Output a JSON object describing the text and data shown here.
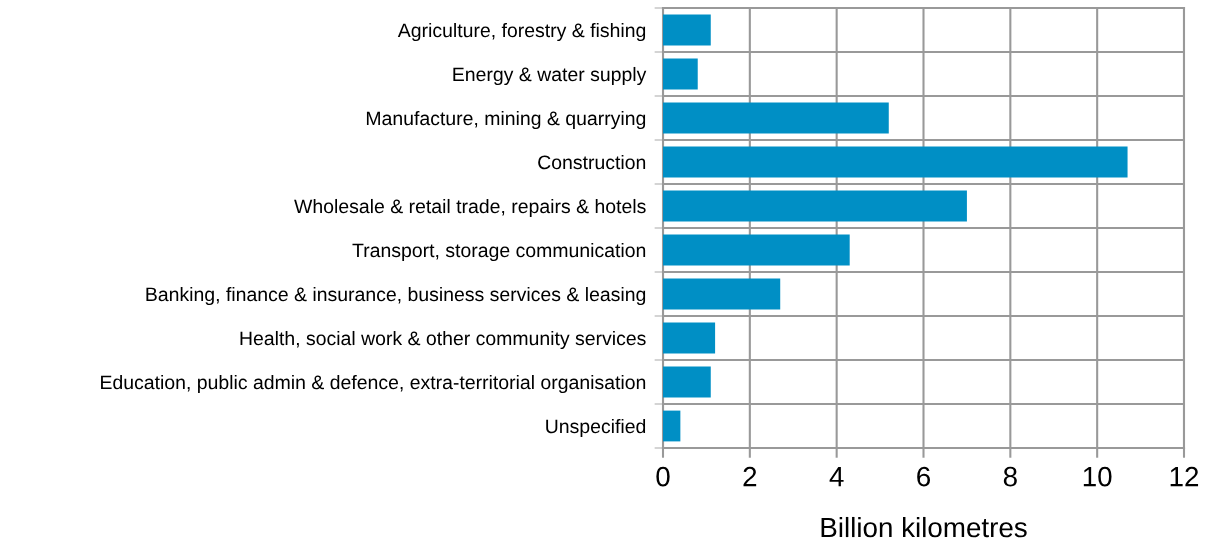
{
  "chart_data": {
    "type": "bar",
    "orientation": "horizontal",
    "xlabel": "Billion kilometres",
    "categories": [
      "Agriculture, forestry & fishing",
      "Energy & water supply",
      "Manufacture, mining & quarrying",
      "Construction",
      "Wholesale & retail trade, repairs & hotels",
      "Transport, storage communication",
      "Banking, finance & insurance, business services & leasing",
      "Health, social work & other community services",
      "Education, public admin & defence, extra-territorial organisation",
      "Unspecified"
    ],
    "values": [
      1.1,
      0.8,
      5.2,
      10.7,
      7.0,
      4.3,
      2.7,
      1.2,
      1.1,
      0.4
    ],
    "color": "#008fc5",
    "xlim": [
      0,
      12
    ],
    "xticks": [
      0,
      2,
      4,
      6,
      8,
      10,
      12
    ],
    "grid": true
  }
}
